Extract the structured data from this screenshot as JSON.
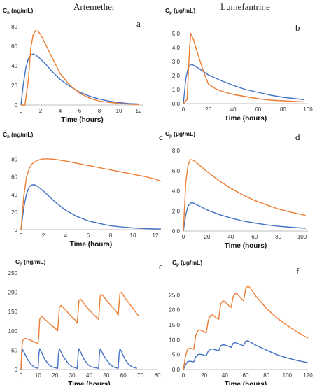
{
  "headings": {
    "left": "Artemether",
    "right": "Lumefantrine"
  },
  "colors": {
    "blue": "#4472c4",
    "orange": "#ed7d31",
    "axis": "#bfbfbf"
  },
  "chart_data": [
    {
      "panel": "a",
      "type": "line",
      "ylabel_main": "C",
      "ylabel_sub": "n",
      "ylabel_unit": " (ng/mL)",
      "xlabel": "Time (hours)",
      "xlim": [
        0,
        12.5
      ],
      "ylim": [
        0,
        80
      ],
      "xticks": [
        0,
        2,
        4,
        6,
        8,
        10,
        12
      ],
      "yticks": [
        0,
        20,
        40,
        60,
        80
      ],
      "ytick_labels": [
        "0",
        "20",
        "40",
        "60",
        "80"
      ],
      "series": [
        {
          "color": "blue",
          "x": [
            0,
            0.25,
            0.5,
            0.75,
            1.0,
            1.25,
            1.5,
            2,
            2.5,
            3,
            4,
            5,
            6,
            7,
            8,
            9,
            10,
            11,
            12
          ],
          "y": [
            0,
            22,
            38,
            47,
            51,
            52,
            51,
            47,
            42,
            36,
            26,
            19,
            13,
            9,
            6,
            4,
            2.5,
            1.5,
            1
          ]
        },
        {
          "color": "orange",
          "x": [
            0,
            0.4,
            0.75,
            1.0,
            1.25,
            1.5,
            1.75,
            2,
            3,
            4,
            5,
            6,
            7,
            8,
            10,
            12
          ],
          "y": [
            0,
            0,
            25,
            58,
            72,
            76,
            75,
            72,
            52,
            32,
            20,
            12,
            7,
            4,
            1.5,
            0.5
          ]
        }
      ]
    },
    {
      "panel": "b",
      "type": "line",
      "ylabel_main": "C",
      "ylabel_sub": "p",
      "ylabel_unit": " (µg/mL)",
      "xlabel": "Time (hours)",
      "xlim": [
        0,
        100
      ],
      "ylim": [
        0,
        5.5
      ],
      "xticks": [
        0,
        20,
        40,
        60,
        80,
        100
      ],
      "yticks": [
        0,
        1,
        2,
        3,
        4,
        5
      ],
      "ytick_labels": [
        "0.0",
        "1.0",
        "2.0",
        "3.0",
        "4.0",
        "5.0"
      ],
      "series": [
        {
          "color": "blue",
          "x": [
            0,
            2,
            4,
            6,
            8,
            10,
            15,
            20,
            30,
            40,
            50,
            60,
            70,
            80,
            90,
            97
          ],
          "y": [
            0,
            1.8,
            2.6,
            2.8,
            2.75,
            2.65,
            2.35,
            2.05,
            1.65,
            1.3,
            1.0,
            0.8,
            0.6,
            0.45,
            0.35,
            0.28
          ]
        },
        {
          "color": "orange",
          "x": [
            0,
            3,
            5,
            6,
            8,
            10,
            15,
            20,
            25,
            30,
            40,
            50,
            60,
            70,
            80,
            97
          ],
          "y": [
            0,
            0.3,
            4.0,
            5.0,
            4.6,
            4.0,
            2.6,
            1.4,
            1.1,
            0.9,
            0.65,
            0.5,
            0.35,
            0.25,
            0.2,
            0.12
          ]
        }
      ]
    },
    {
      "panel": "c",
      "type": "line",
      "ylabel_main": "C",
      "ylabel_sub": "n",
      "ylabel_unit": " (ng/mL)",
      "xlabel": "Time (hours)",
      "xlim": [
        0,
        12.5
      ],
      "ylim": [
        0,
        90
      ],
      "xticks": [
        0,
        2,
        4,
        6,
        8,
        10,
        12
      ],
      "yticks": [
        0,
        20,
        40,
        60,
        80
      ],
      "ytick_labels": [
        "0",
        "20",
        "40",
        "60",
        "80"
      ],
      "series": [
        {
          "color": "blue",
          "x": [
            0,
            0.25,
            0.5,
            0.75,
            1.0,
            1.25,
            1.5,
            2,
            2.5,
            3,
            4,
            5,
            6,
            7,
            8,
            9,
            10,
            11,
            12.5
          ],
          "y": [
            0,
            25,
            41,
            49,
            51,
            51,
            49,
            44,
            38,
            32,
            22,
            15,
            10,
            7,
            4.5,
            3,
            2,
            1.3,
            0.6
          ]
        },
        {
          "color": "orange",
          "x": [
            0,
            0.25,
            0.5,
            0.75,
            1.0,
            1.5,
            2,
            2.5,
            3,
            4,
            5,
            6,
            7,
            8,
            9,
            10,
            11,
            12,
            12.5
          ],
          "y": [
            0,
            38,
            60,
            70,
            75,
            79,
            80.5,
            80.5,
            80,
            78,
            75.5,
            73,
            70.5,
            68,
            65.5,
            63,
            60.5,
            57.5,
            55
          ]
        }
      ]
    },
    {
      "panel": "d",
      "type": "line",
      "ylabel_main": "C",
      "ylabel_sub": "p",
      "ylabel_unit": " (µg/mL)",
      "xlabel": "Time (hours)",
      "xlim": [
        0,
        105
      ],
      "ylim": [
        0,
        8
      ],
      "xticks": [
        0,
        20,
        40,
        60,
        80,
        100
      ],
      "yticks": [
        0,
        2,
        4,
        6,
        8
      ],
      "ytick_labels": [
        "0.0",
        "2.0",
        "4.0",
        "6.0",
        "8.0"
      ],
      "series": [
        {
          "color": "blue",
          "x": [
            0,
            2,
            4,
            6,
            8,
            10,
            15,
            20,
            30,
            40,
            50,
            60,
            70,
            80,
            90,
            103
          ],
          "y": [
            0,
            1.6,
            2.5,
            2.8,
            2.8,
            2.7,
            2.4,
            2.1,
            1.65,
            1.3,
            1.0,
            0.8,
            0.62,
            0.48,
            0.38,
            0.28
          ]
        },
        {
          "color": "orange",
          "x": [
            0,
            2,
            4,
            6,
            8,
            10,
            15,
            20,
            30,
            40,
            50,
            60,
            70,
            80,
            90,
            103
          ],
          "y": [
            0,
            4.8,
            6.6,
            7.1,
            7.05,
            6.9,
            6.4,
            5.9,
            5.0,
            4.25,
            3.6,
            3.05,
            2.6,
            2.2,
            1.9,
            1.55
          ]
        }
      ]
    },
    {
      "panel": "e",
      "type": "line",
      "ylabel_main": "C",
      "ylabel_sub": "p",
      "ylabel_unit": " (ng/mL)",
      "xlabel": "Time (hours)",
      "xlim": [
        0,
        80
      ],
      "ylim": [
        0,
        250
      ],
      "xticks": [
        0,
        10,
        20,
        30,
        40,
        50,
        60,
        70,
        80
      ],
      "yticks": [
        0,
        50,
        100,
        150,
        200,
        250
      ],
      "ytick_labels": [
        "0",
        "50",
        "100",
        "150",
        "200",
        "250"
      ],
      "series": [
        {
          "color": "blue",
          "x": [
            0,
            0.5,
            1,
            1.5,
            2.5,
            4,
            6,
            8,
            10,
            10.5,
            11,
            11.5,
            12.5,
            14,
            16,
            18,
            21.5,
            22,
            22.5,
            23,
            24,
            26,
            28,
            30,
            33,
            33.5,
            34,
            34.5,
            35.5,
            37,
            39,
            41,
            45.5,
            46,
            46.5,
            47,
            48,
            50,
            52,
            54,
            57,
            57.5,
            58,
            58.5,
            59.5,
            61,
            63,
            65,
            68
          ],
          "y": [
            0,
            40,
            51,
            48,
            38,
            25,
            13,
            6,
            3,
            40,
            54,
            50,
            40,
            26,
            14,
            7,
            3,
            40,
            54,
            50,
            40,
            26,
            14,
            7,
            3,
            40,
            54,
            50,
            40,
            26,
            14,
            7,
            3,
            40,
            54,
            50,
            40,
            26,
            14,
            7,
            3,
            40,
            54,
            50,
            40,
            26,
            14,
            7,
            3
          ]
        },
        {
          "color": "orange",
          "x": [
            0,
            0.5,
            1,
            2,
            3,
            5,
            8,
            10,
            10.5,
            11,
            12,
            14,
            17,
            20,
            21.5,
            22,
            22.5,
            23.5,
            26,
            29,
            32,
            33,
            33.5,
            34,
            35,
            37,
            40,
            43,
            45.5,
            46,
            46.5,
            47.5,
            50,
            53,
            56,
            57,
            57.5,
            58,
            59,
            61,
            64,
            67,
            69
          ],
          "y": [
            0,
            55,
            75,
            80,
            80,
            77,
            71,
            67,
            90,
            130,
            138,
            130,
            118,
            107,
            100,
            125,
            160,
            166,
            155,
            140,
            127,
            120,
            150,
            180,
            182,
            170,
            154,
            140,
            130,
            160,
            193,
            194,
            180,
            164,
            150,
            140,
            170,
            197,
            200,
            185,
            168,
            150,
            138
          ]
        }
      ]
    },
    {
      "panel": "f",
      "type": "line",
      "ylabel_main": "C",
      "ylabel_sub": "p",
      "ylabel_unit": " (µg/mL)",
      "xlabel": "Time (hours)",
      "xlim": [
        0,
        120
      ],
      "ylim": [
        0,
        30
      ],
      "xticks": [
        0,
        20,
        40,
        60,
        80,
        100,
        120
      ],
      "yticks": [
        0,
        5,
        10,
        15,
        20,
        25
      ],
      "ytick_labels": [
        "0.0",
        "5.0",
        "10.0",
        "15.0",
        "20.0",
        "25.0"
      ],
      "series": [
        {
          "color": "blue",
          "x": [
            0,
            2,
            4,
            6,
            8,
            10,
            12,
            14,
            16,
            18,
            20,
            22,
            24,
            26,
            28,
            30,
            32,
            34,
            36,
            38,
            40,
            42,
            44,
            46,
            48,
            50,
            52,
            54,
            56,
            58,
            60,
            62,
            64,
            66,
            70,
            80,
            90,
            100,
            110,
            120
          ],
          "y": [
            0,
            1.5,
            2.6,
            2.8,
            2.7,
            2.6,
            4.3,
            5.0,
            5.1,
            5.0,
            4.8,
            4.6,
            6.2,
            6.8,
            6.9,
            6.7,
            6.5,
            6.3,
            8.0,
            8.3,
            8.2,
            8.0,
            7.7,
            7.4,
            8.8,
            9.0,
            8.8,
            8.5,
            8.2,
            8.0,
            9.5,
            9.6,
            9.3,
            8.9,
            8.1,
            6.5,
            5.0,
            3.9,
            3.0,
            2.3
          ]
        },
        {
          "color": "orange",
          "x": [
            0,
            2,
            4,
            6,
            8,
            10,
            12,
            14,
            16,
            18,
            20,
            22,
            24,
            26,
            28,
            30,
            32,
            34,
            36,
            38,
            40,
            42,
            44,
            46,
            48,
            50,
            52,
            54,
            56,
            58,
            60,
            62,
            64,
            66,
            70,
            80,
            90,
            100,
            110,
            120
          ],
          "y": [
            0,
            4.5,
            6.8,
            7.1,
            7.0,
            6.8,
            11.5,
            13.0,
            13.3,
            13.0,
            12.6,
            12.2,
            16.5,
            18.0,
            18.3,
            17.8,
            17.2,
            16.8,
            22.0,
            23.0,
            22.8,
            22.0,
            21.3,
            20.8,
            24.5,
            25.5,
            25.3,
            24.5,
            23.7,
            23.0,
            27.0,
            28.0,
            27.5,
            26.5,
            24.5,
            20.5,
            17.3,
            14.8,
            12.5,
            10.5
          ]
        }
      ]
    }
  ]
}
